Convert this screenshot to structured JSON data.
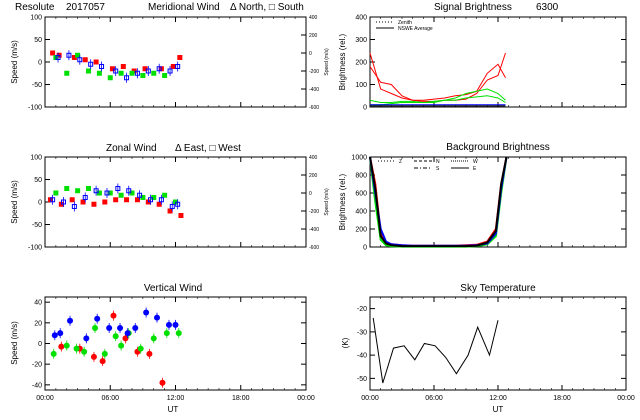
{
  "panels": [
    {
      "id": "meridional",
      "title": "Meridional Wind",
      "ylabel": "Speed (m/s)",
      "y2label": "Speed (m/s)"
    },
    {
      "id": "signal",
      "title": "Signal Brightness",
      "ylabel": "Brightness (rel.)"
    },
    {
      "id": "zonal",
      "title": "Zonal Wind",
      "ylabel": "Speed (m/s)",
      "y2label": "Speed (m/s)"
    },
    {
      "id": "background",
      "title": "Background Brightness",
      "ylabel": "Brightness (rel.)"
    },
    {
      "id": "vertical",
      "title": "Vertical Wind",
      "ylabel": "Speed (m/s)"
    },
    {
      "id": "skytemp",
      "title": "Sky Temperature",
      "ylabel": "(K)"
    }
  ],
  "header": {
    "station": "Resolute",
    "date": "2017057",
    "meridional_legend": "Δ North, □ South",
    "zonal_legend": "Δ East, □ West",
    "wavelength": "6300"
  },
  "xlabel": "UT",
  "xticks": [
    "00:00",
    "06:00",
    "12:00",
    "18:00",
    "00:00"
  ],
  "colors": {
    "red": "#ff0000",
    "green": "#00e000",
    "blue": "#0000ff",
    "black": "#000000"
  },
  "chart_data": [
    {
      "name": "meridional",
      "type": "scatter",
      "xlim": [
        0,
        24
      ],
      "ylim": [
        -100,
        100
      ],
      "yticks": [
        -100,
        -50,
        0,
        50,
        100
      ],
      "y2ticks": [
        "-600",
        "-400",
        "-200",
        "0",
        "200",
        "400"
      ],
      "series": [
        {
          "color": "red",
          "x": [
            0.7,
            1.3,
            2.7,
            3.7,
            4.7,
            6.2,
            7.2,
            8.2,
            9.2,
            10.7,
            11.8,
            12.4
          ],
          "y": [
            20,
            15,
            10,
            5,
            0,
            -15,
            -10,
            -20,
            -15,
            -15,
            -10,
            10
          ]
        },
        {
          "color": "green",
          "x": [
            1.0,
            2.0,
            3.0,
            4.0,
            5.0,
            6.0,
            7.0,
            8.0,
            9.0,
            10.0,
            11.0
          ],
          "y": [
            10,
            -25,
            15,
            -20,
            -25,
            -35,
            -25,
            -25,
            -30,
            -25,
            -30
          ]
        },
        {
          "color": "blue",
          "x": [
            1.2,
            2.2,
            3.2,
            4.2,
            5.2,
            6.5,
            7.5,
            8.5,
            9.5,
            10.5,
            11.5,
            12.2
          ],
          "y": [
            10,
            15,
            5,
            -5,
            -10,
            -20,
            -35,
            -25,
            -20,
            -15,
            -20,
            -10
          ]
        }
      ]
    },
    {
      "name": "signal",
      "type": "line",
      "xlim": [
        0,
        24
      ],
      "ylim": [
        0,
        400
      ],
      "yticks": [
        0,
        100,
        200,
        300,
        400
      ],
      "legend": [
        "Zenith",
        "NSWE Average"
      ],
      "series": [
        {
          "color": "red",
          "x": [
            0,
            1,
            2,
            3,
            4,
            5,
            6,
            7,
            8,
            9,
            10,
            11,
            12,
            12.7
          ],
          "y": [
            240,
            80,
            60,
            40,
            30,
            30,
            35,
            40,
            50,
            55,
            70,
            150,
            190,
            130
          ]
        },
        {
          "color": "red",
          "x": [
            0,
            1,
            2,
            3,
            4,
            5,
            6,
            7,
            8,
            9,
            10,
            11,
            12,
            12.7
          ],
          "y": [
            180,
            110,
            100,
            50,
            30,
            25,
            25,
            30,
            30,
            35,
            60,
            120,
            140,
            240
          ]
        },
        {
          "color": "green",
          "x": [
            0,
            1,
            2,
            3,
            4,
            5,
            6,
            7,
            8,
            9,
            10,
            11,
            12,
            12.7
          ],
          "y": [
            30,
            20,
            20,
            25,
            25,
            20,
            25,
            30,
            30,
            40,
            45,
            50,
            40,
            20
          ]
        },
        {
          "color": "green",
          "x": [
            0,
            1,
            2,
            3,
            4,
            5,
            6,
            7,
            8,
            9,
            10,
            11,
            12,
            12.7
          ],
          "y": [
            10,
            10,
            15,
            20,
            20,
            20,
            20,
            30,
            40,
            60,
            70,
            80,
            60,
            30
          ]
        },
        {
          "color": "blue",
          "x": [
            0,
            1,
            2,
            3,
            4,
            5,
            6,
            7,
            8,
            9,
            10,
            11,
            12,
            12.7
          ],
          "y": [
            10,
            10,
            10,
            10,
            10,
            10,
            10,
            10,
            10,
            10,
            10,
            10,
            10,
            10
          ]
        },
        {
          "color": "black",
          "x": [
            0,
            1,
            2,
            3,
            4,
            5,
            6,
            7,
            8,
            9,
            10,
            11,
            12,
            12.7
          ],
          "y": [
            5,
            5,
            5,
            5,
            5,
            5,
            5,
            5,
            5,
            5,
            5,
            5,
            5,
            5
          ]
        }
      ]
    },
    {
      "name": "zonal",
      "type": "scatter",
      "xlim": [
        0,
        24
      ],
      "ylim": [
        -100,
        100
      ],
      "yticks": [
        -100,
        -50,
        0,
        50,
        100
      ],
      "y2ticks": [
        "-600",
        "-400",
        "-200",
        "0",
        "200",
        "400"
      ],
      "series": [
        {
          "color": "red",
          "x": [
            0.5,
            1.5,
            2.5,
            3.5,
            4.5,
            5.5,
            6.5,
            7.5,
            8.5,
            9.5,
            10.5,
            11.5,
            12.5
          ],
          "y": [
            5,
            -5,
            5,
            0,
            -5,
            0,
            5,
            5,
            5,
            0,
            -5,
            -20,
            -30
          ]
        },
        {
          "color": "green",
          "x": [
            1,
            2,
            3,
            4,
            5,
            6,
            7,
            8,
            9,
            10,
            11,
            12
          ],
          "y": [
            20,
            30,
            25,
            30,
            20,
            20,
            15,
            20,
            10,
            10,
            15,
            0
          ]
        },
        {
          "color": "blue",
          "x": [
            0.7,
            1.7,
            2.7,
            3.7,
            4.7,
            5.7,
            6.7,
            7.7,
            8.7,
            9.7,
            10.7,
            11.7,
            12.2
          ],
          "y": [
            5,
            0,
            -10,
            10,
            25,
            20,
            30,
            25,
            15,
            5,
            5,
            -10,
            -5
          ]
        }
      ]
    },
    {
      "name": "background",
      "type": "line",
      "xlim": [
        0,
        24
      ],
      "ylim": [
        0,
        1000
      ],
      "yticks": [
        0,
        200,
        400,
        600,
        800,
        1000
      ],
      "legend": [
        "Z",
        "N",
        "S",
        "W",
        "E"
      ],
      "series": [
        {
          "color": "red",
          "x": [
            0,
            0.5,
            1,
            1.5,
            2,
            3,
            4,
            5,
            6,
            7,
            8,
            9,
            10,
            11,
            11.8,
            12.3,
            12.8
          ],
          "y": [
            1000,
            700,
            150,
            50,
            30,
            20,
            15,
            15,
            15,
            15,
            15,
            20,
            25,
            60,
            200,
            700,
            1000
          ]
        },
        {
          "color": "green",
          "x": [
            0,
            0.5,
            1,
            1.5,
            2,
            3,
            4,
            5,
            6,
            7,
            8,
            9,
            10,
            11,
            11.8,
            12.3,
            12.8
          ],
          "y": [
            1000,
            500,
            80,
            20,
            10,
            5,
            5,
            5,
            5,
            5,
            5,
            5,
            10,
            30,
            120,
            600,
            1000
          ]
        },
        {
          "color": "blue",
          "x": [
            0,
            0.5,
            1,
            1.5,
            2,
            3,
            4,
            5,
            6,
            7,
            8,
            9,
            10,
            11,
            11.8,
            12.3,
            12.8
          ],
          "y": [
            1000,
            600,
            200,
            60,
            30,
            20,
            15,
            15,
            15,
            15,
            15,
            15,
            20,
            40,
            150,
            650,
            1000
          ]
        },
        {
          "color": "black",
          "x": [
            0,
            0.5,
            1,
            1.5,
            2,
            3,
            4,
            5,
            6,
            7,
            8,
            9,
            10,
            11,
            11.8,
            12.3,
            12.8
          ],
          "y": [
            1000,
            650,
            120,
            40,
            20,
            10,
            10,
            10,
            10,
            10,
            10,
            10,
            15,
            50,
            180,
            700,
            1000
          ]
        }
      ]
    },
    {
      "name": "vertical",
      "type": "scatter",
      "xlim": [
        0,
        24
      ],
      "ylim": [
        -45,
        45
      ],
      "yticks": [
        -40,
        -20,
        0,
        20,
        40
      ],
      "series": [
        {
          "color": "red",
          "x": [
            1.5,
            3.2,
            4.5,
            5.3,
            6.3,
            7.4,
            8.5,
            9.6,
            10.8
          ],
          "y": [
            -3,
            -5,
            -13,
            -17,
            27,
            5,
            -8,
            -10,
            -38
          ]
        },
        {
          "color": "green",
          "x": [
            0.8,
            2.0,
            2.9,
            3.6,
            4.6,
            5.5,
            6.5,
            7.0,
            7.7,
            8.8,
            10.0,
            11.2,
            12.3
          ],
          "y": [
            -10,
            -2,
            -5,
            -8,
            15,
            -10,
            7,
            -2,
            10,
            -5,
            5,
            10,
            10
          ]
        },
        {
          "color": "blue",
          "x": [
            0.9,
            1.4,
            2.3,
            3.8,
            4.8,
            5.9,
            6.9,
            7.6,
            8.3,
            9.3,
            10.3,
            11.4,
            12.0
          ],
          "y": [
            8,
            10,
            22,
            5,
            24,
            15,
            15,
            10,
            15,
            30,
            25,
            18,
            18
          ]
        }
      ]
    },
    {
      "name": "skytemp",
      "type": "line",
      "xlim": [
        0,
        24
      ],
      "ylim": [
        -55,
        -15
      ],
      "yticks": [
        -50,
        -40,
        -30,
        -20
      ],
      "series": [
        {
          "color": "black",
          "x": [
            0.3,
            1.2,
            2.2,
            3.2,
            4.2,
            5.1,
            6.1,
            7.1,
            8.1,
            9.2,
            10.1,
            11.2,
            12.0
          ],
          "y": [
            -24,
            -52,
            -37,
            -36,
            -42,
            -35,
            -36,
            -41,
            -48,
            -40,
            -28,
            -40,
            -25
          ]
        }
      ]
    }
  ]
}
